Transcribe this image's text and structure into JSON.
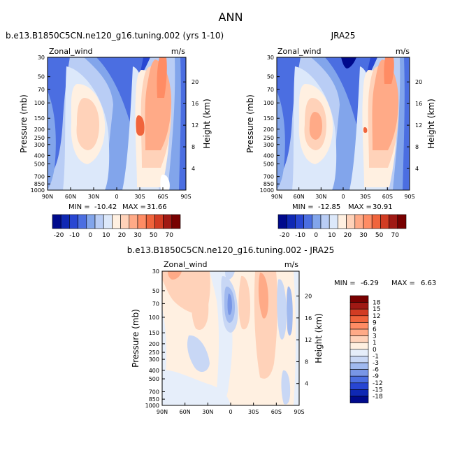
{
  "page_title": "ANN",
  "chart_data": [
    {
      "id": "model",
      "type": "contour",
      "title": "b.e13.B1850C5CN.ne120_g16.tuning.002 (yrs 1-10)",
      "field_label": "Zonal_wind",
      "units": "m/s",
      "xlabel": "",
      "ylabel": "Pressure (mb)",
      "y2label": "Height (km)",
      "x_ticks": [
        "90N",
        "60N",
        "30N",
        "0",
        "30S",
        "60S",
        "90S"
      ],
      "y_ticks": [
        "30",
        "50",
        "70",
        "100",
        "150",
        "200",
        "250",
        "300",
        "400",
        "500",
        "700",
        "850",
        "1000"
      ],
      "y2_ticks": [
        "20",
        "16",
        "12",
        "8",
        "4"
      ],
      "stats": {
        "min_label": "MIN =",
        "min": "-10.42",
        "max_label": "MAX =",
        "max": "31.66"
      },
      "levels": [
        "-20",
        "-10",
        "0",
        "10",
        "20",
        "30",
        "50",
        "70"
      ],
      "features": [
        {
          "kind": "max",
          "lat": -25,
          "p": 180,
          "value": 31.66
        },
        {
          "kind": "max",
          "lat": 30,
          "p": 200,
          "value": 28
        },
        {
          "kind": "min",
          "lat": 10,
          "p": 40,
          "value": -10.42
        }
      ]
    },
    {
      "id": "obs",
      "type": "contour",
      "title": "JRA25",
      "field_label": "Zonal_wind",
      "units": "m/s",
      "xlabel": "",
      "ylabel": "Pressure (mb)",
      "y2label": "Height (km)",
      "x_ticks": [
        "90N",
        "60N",
        "30N",
        "0",
        "30S",
        "60S",
        "90S"
      ],
      "y_ticks": [
        "30",
        "50",
        "70",
        "100",
        "150",
        "200",
        "250",
        "300",
        "400",
        "500",
        "700",
        "850",
        "1000"
      ],
      "y2_ticks": [
        "20",
        "16",
        "12",
        "8",
        "4"
      ],
      "stats": {
        "min_label": "MIN =",
        "min": "-12.85",
        "max_label": "MAX =",
        "max": "30.91"
      },
      "levels": [
        "-20",
        "-10",
        "0",
        "10",
        "20",
        "30",
        "50",
        "70"
      ],
      "features": [
        {
          "kind": "max",
          "lat": -25,
          "p": 200,
          "value": 30.91
        },
        {
          "kind": "max",
          "lat": 30,
          "p": 200,
          "value": 27
        },
        {
          "kind": "min",
          "lat": 10,
          "p": 40,
          "value": -12.85
        }
      ]
    },
    {
      "id": "diff",
      "type": "contour",
      "title": "b.e13.B1850C5CN.ne120_g16.tuning.002 - JRA25",
      "field_label": "Zonal_wind",
      "units": "m/s",
      "xlabel": "",
      "ylabel": "Pressure (mb)",
      "y2label": "Height (km)",
      "x_ticks": [
        "90N",
        "60N",
        "30N",
        "0",
        "30S",
        "60S",
        "90S"
      ],
      "y_ticks": [
        "30",
        "50",
        "70",
        "100",
        "150",
        "200",
        "250",
        "300",
        "400",
        "500",
        "700",
        "850",
        "1000"
      ],
      "y2_ticks": [
        "20",
        "16",
        "12",
        "8",
        "4"
      ],
      "stats": {
        "min_label": "MIN =",
        "min": "-6.29",
        "max_label": "MAX =",
        "max": "6.63"
      },
      "levels": [
        "18",
        "15",
        "12",
        "9",
        "6",
        "3",
        "1",
        "0",
        "-1",
        "-3",
        "-6",
        "-9",
        "-12",
        "-15",
        "-18"
      ],
      "features": [
        {
          "kind": "max",
          "lat": -50,
          "p": 100,
          "value": 6.63
        },
        {
          "kind": "min",
          "lat": 0,
          "p": 100,
          "value": -6.29
        }
      ]
    }
  ],
  "colors": {
    "blue_levels": [
      "#000a8c",
      "#0f28b4",
      "#2846d2",
      "#4b6ee1",
      "#82a5eb",
      "#b9cdf5",
      "#dce8fa"
    ],
    "red_levels": [
      "#fff0e1",
      "#ffd2b9",
      "#ffaa87",
      "#ff8c64",
      "#f0643c",
      "#d23c23",
      "#a01914",
      "#780000"
    ],
    "diff_scale": [
      "#780000",
      "#a01914",
      "#d23c23",
      "#f0643c",
      "#ff8c64",
      "#ffaa87",
      "#ffd2b9",
      "#fff0e1",
      "#e6eefa",
      "#c8d7f5",
      "#a0b9ef",
      "#7896e6",
      "#4b6ee1",
      "#2846d2",
      "#0f28b4",
      "#000a8c"
    ]
  }
}
